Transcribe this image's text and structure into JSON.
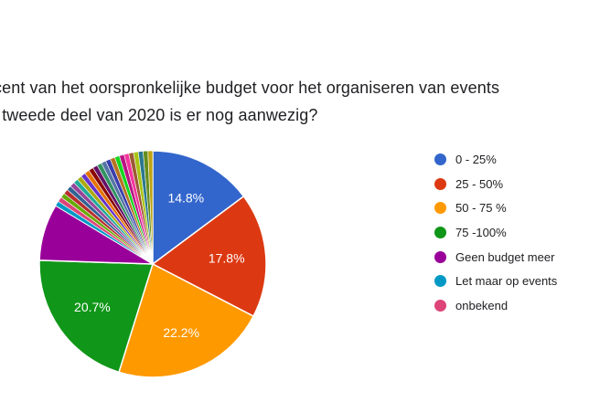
{
  "question": {
    "line1": "cent van het oorspronkelijke budget voor het organiseren van events",
    "line2": "t tweede deel van 2020 is er nog aanwezig?"
  },
  "chart_data": {
    "type": "pie",
    "title": "",
    "legend_placement": "right",
    "start_angle_deg": 90,
    "direction": "clockwise",
    "slices": [
      {
        "label": "0 - 25%",
        "value": 14.8,
        "color": "#3366cc",
        "data_label": "14.8%"
      },
      {
        "label": "25 - 50%",
        "value": 17.8,
        "color": "#dc3912",
        "data_label": "17.8%"
      },
      {
        "label": "50 - 75 %",
        "value": 22.2,
        "color": "#ff9900",
        "data_label": "22.2%"
      },
      {
        "label": "75 -100%",
        "value": 20.7,
        "color": "#109618",
        "data_label": "20.7%"
      },
      {
        "label": "Geen budget meer",
        "value": 8.1,
        "color": "#990099",
        "data_label": ""
      },
      {
        "label": "Let maar op events",
        "value": 0.7,
        "color": "#0099c6",
        "data_label": ""
      },
      {
        "label": "onbekend",
        "value": 0.7,
        "color": "#dd4477",
        "data_label": ""
      }
    ],
    "minor_slices": {
      "count": 22,
      "value_each": 0.68,
      "colors": [
        "#66aa00",
        "#b82e2e",
        "#316395",
        "#994499",
        "#22aa99",
        "#aaaa11",
        "#6633cc",
        "#e67300",
        "#8b0707",
        "#651067",
        "#329262",
        "#5574a6",
        "#3b3eac",
        "#b77322",
        "#16d620",
        "#b91383",
        "#f4359e",
        "#9c5935",
        "#a9c413",
        "#2a778d",
        "#668d1c",
        "#bea413"
      ]
    }
  }
}
